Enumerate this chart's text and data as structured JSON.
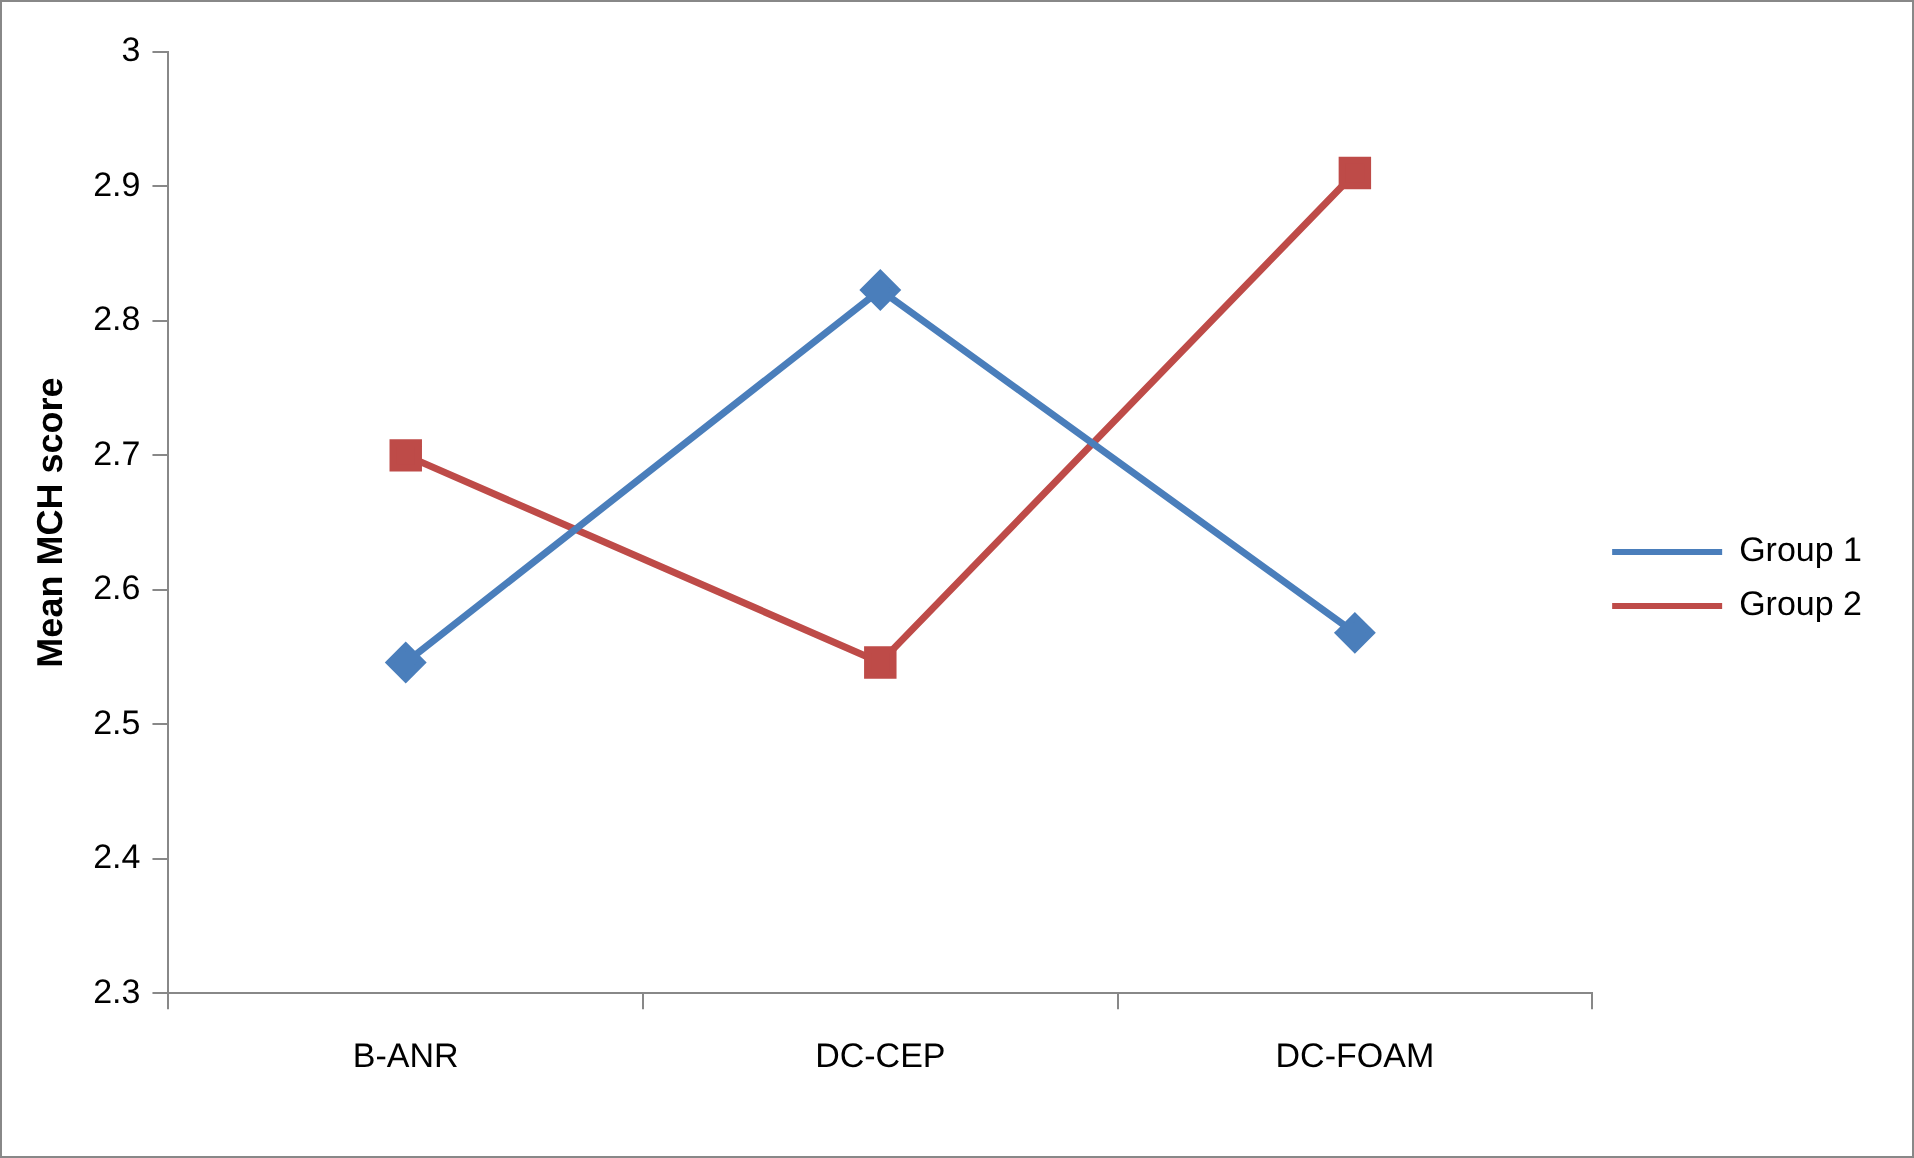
{
  "chart_data": {
    "type": "line",
    "ylabel": "Mean MCH score",
    "categories": [
      "B-ANR",
      "DC-CEP",
      "DC-FOAM"
    ],
    "series": [
      {
        "name": "Group 1",
        "color": "#4a7ebb",
        "marker": "diamond",
        "values": [
          2.546,
          2.823,
          2.568
        ]
      },
      {
        "name": "Group 2",
        "color": "#be4b48",
        "marker": "square",
        "values": [
          2.7,
          2.546,
          2.91
        ]
      }
    ],
    "ylim": [
      2.3,
      3
    ],
    "yticks": [
      2.3,
      2.4,
      2.5,
      2.6,
      2.7,
      2.8,
      2.9,
      3
    ],
    "grid": false,
    "legend": "right"
  }
}
